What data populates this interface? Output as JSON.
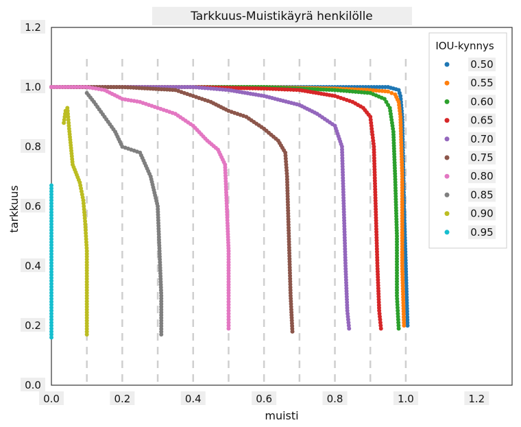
{
  "chart_data": {
    "type": "scatter",
    "title": "Tarkkuus-Muistikäyrä henkilölle",
    "xlabel": "muisti",
    "ylabel": "tarkkuus",
    "xlim": [
      0.0,
      1.3
    ],
    "ylim": [
      0.0,
      1.2
    ],
    "xticks": [
      "0.0",
      "0.2",
      "0.4",
      "0.6",
      "0.8",
      "1.0",
      "1.2"
    ],
    "yticks": [
      "0.0",
      "0.2",
      "0.4",
      "0.6",
      "0.8",
      "1.0",
      "1.2"
    ],
    "vertical_gridlines_at": [
      0.1,
      0.2,
      0.3,
      0.4,
      0.5,
      0.6,
      0.7,
      0.8,
      0.9,
      1.0
    ],
    "grid": "vertical dashed",
    "legend_title": "IOU-kynnys",
    "legend_position": "top-right",
    "series": [
      {
        "name": "0.50",
        "color": "#1f77b4",
        "x": [
          0.0,
          0.2,
          0.4,
          0.6,
          0.8,
          0.95,
          0.98,
          0.985,
          0.99,
          0.995,
          1.0,
          1.005
        ],
        "y": [
          1.0,
          1.0,
          1.0,
          1.0,
          1.0,
          1.0,
          0.99,
          0.97,
          0.9,
          0.6,
          0.4,
          0.2
        ]
      },
      {
        "name": "0.55",
        "color": "#ff7f0e",
        "x": [
          0.0,
          0.2,
          0.4,
          0.6,
          0.8,
          0.9,
          0.95,
          0.97,
          0.98,
          0.985,
          0.99,
          0.99,
          0.995
        ],
        "y": [
          1.0,
          1.0,
          1.0,
          1.0,
          0.995,
          0.99,
          0.985,
          0.975,
          0.95,
          0.9,
          0.7,
          0.4,
          0.2
        ]
      },
      {
        "name": "0.60",
        "color": "#2ca02c",
        "x": [
          0.0,
          0.2,
          0.4,
          0.6,
          0.8,
          0.9,
          0.94,
          0.955,
          0.965,
          0.97,
          0.975,
          0.975,
          0.98
        ],
        "y": [
          1.0,
          1.0,
          1.0,
          1.0,
          0.99,
          0.98,
          0.96,
          0.93,
          0.85,
          0.7,
          0.5,
          0.3,
          0.19
        ]
      },
      {
        "name": "0.65",
        "color": "#d62728",
        "x": [
          0.0,
          0.2,
          0.4,
          0.6,
          0.7,
          0.8,
          0.85,
          0.88,
          0.9,
          0.91,
          0.915,
          0.92,
          0.925,
          0.93
        ],
        "y": [
          1.0,
          1.0,
          1.0,
          0.995,
          0.99,
          0.97,
          0.95,
          0.93,
          0.9,
          0.8,
          0.6,
          0.4,
          0.25,
          0.19
        ]
      },
      {
        "name": "0.70",
        "color": "#9467bd",
        "x": [
          0.0,
          0.2,
          0.4,
          0.5,
          0.6,
          0.7,
          0.75,
          0.8,
          0.82,
          0.825,
          0.83,
          0.835,
          0.84
        ],
        "y": [
          1.0,
          1.0,
          1.0,
          0.99,
          0.97,
          0.94,
          0.91,
          0.87,
          0.8,
          0.6,
          0.4,
          0.25,
          0.19
        ]
      },
      {
        "name": "0.75",
        "color": "#8c564b",
        "x": [
          0.0,
          0.2,
          0.35,
          0.4,
          0.45,
          0.5,
          0.55,
          0.6,
          0.64,
          0.66,
          0.665,
          0.67,
          0.675,
          0.68
        ],
        "y": [
          1.0,
          1.0,
          0.99,
          0.97,
          0.95,
          0.92,
          0.9,
          0.86,
          0.82,
          0.78,
          0.7,
          0.5,
          0.3,
          0.18
        ]
      },
      {
        "name": "0.80",
        "color": "#e377c2",
        "x": [
          0.0,
          0.1,
          0.15,
          0.2,
          0.25,
          0.3,
          0.35,
          0.4,
          0.44,
          0.47,
          0.49,
          0.495,
          0.5,
          0.5,
          0.5
        ],
        "y": [
          1.0,
          1.0,
          0.99,
          0.96,
          0.95,
          0.93,
          0.91,
          0.87,
          0.82,
          0.79,
          0.74,
          0.6,
          0.45,
          0.3,
          0.19
        ]
      },
      {
        "name": "0.85",
        "color": "#7f7f7f",
        "x": [
          0.1,
          0.12,
          0.15,
          0.18,
          0.2,
          0.25,
          0.28,
          0.3,
          0.305,
          0.31,
          0.31
        ],
        "y": [
          0.98,
          0.95,
          0.9,
          0.85,
          0.8,
          0.78,
          0.7,
          0.6,
          0.45,
          0.3,
          0.17
        ]
      },
      {
        "name": "0.90",
        "color": "#bcbd22",
        "x": [
          0.035,
          0.04,
          0.045,
          0.05,
          0.06,
          0.08,
          0.09,
          0.095,
          0.1,
          0.1,
          0.1
        ],
        "y": [
          0.88,
          0.92,
          0.93,
          0.86,
          0.74,
          0.68,
          0.62,
          0.55,
          0.45,
          0.3,
          0.17
        ]
      },
      {
        "name": "0.95",
        "color": "#17becf",
        "x": [
          0.0,
          0.0,
          0.0,
          0.0,
          0.0,
          0.0,
          0.0,
          0.0,
          0.0,
          0.0,
          0.0,
          0.0,
          0.0
        ],
        "y": [
          0.67,
          0.62,
          0.55,
          0.5,
          0.45,
          0.4,
          0.37,
          0.32,
          0.28,
          0.25,
          0.22,
          0.19,
          0.16
        ]
      }
    ]
  }
}
